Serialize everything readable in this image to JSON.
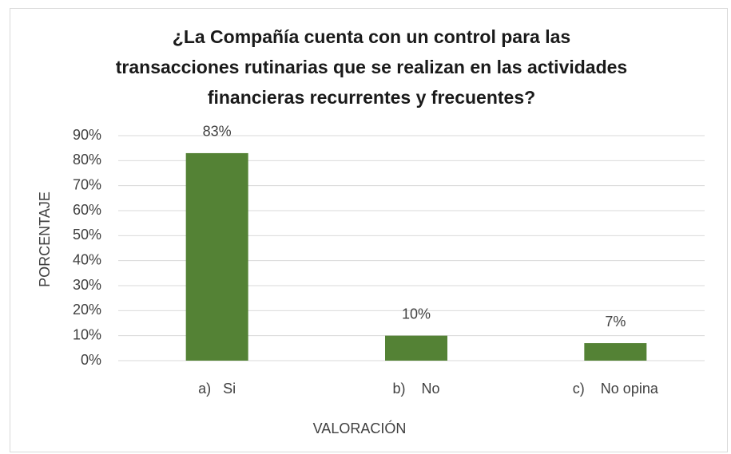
{
  "chart_data": {
    "type": "bar",
    "title": [
      "¿La Compañía cuenta con un control para las",
      "transacciones rutinarias que se realizan en las actividades",
      "financieras recurrentes y frecuentes?"
    ],
    "categories": [
      "a)   Si",
      "b)    No",
      "c)    No opina"
    ],
    "values": [
      83,
      10,
      7
    ],
    "value_labels": [
      "83%",
      "10%",
      "7%"
    ],
    "color": "#548235",
    "ylim": [
      0,
      90
    ],
    "yticks": [
      {
        "value": 0,
        "label": "0%"
      },
      {
        "value": 10,
        "label": "10%"
      },
      {
        "value": 20,
        "label": "20%"
      },
      {
        "value": 30,
        "label": "30%"
      },
      {
        "value": 40,
        "label": "40%"
      },
      {
        "value": 50,
        "label": "50%"
      },
      {
        "value": 60,
        "label": "60%"
      },
      {
        "value": 70,
        "label": "70%"
      },
      {
        "value": 80,
        "label": "80%"
      },
      {
        "value": 90,
        "label": "90%"
      }
    ],
    "xlabel": "VALORACIÓN",
    "ylabel": "PORCENTAJE",
    "grid": true
  }
}
